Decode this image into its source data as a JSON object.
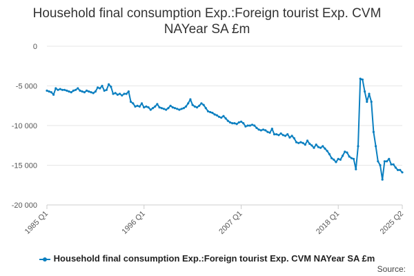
{
  "chart_data": {
    "type": "line",
    "title": "Household final consumption Exp.:Foreign tourist Exp. CVM NAYear SA £m",
    "title_lines": [
      "Household final consumption Exp.:Foreign tourist Exp. CVM",
      "NAYear SA £m"
    ],
    "ylim": [
      -20000,
      0
    ],
    "yticks": [
      0,
      -5000,
      -10000,
      -15000,
      -20000
    ],
    "ytick_labels": [
      "0",
      "-5 000",
      "-10 000",
      "-15 000",
      "-20 000"
    ],
    "xlim": [
      1985.0,
      2025.25
    ],
    "xticks": [
      1985.0,
      1996.0,
      2007.0,
      2018.0,
      2025.25
    ],
    "xtick_labels": [
      "1985 Q1",
      "1996 Q1",
      "2007 Q1",
      "2018 Q1",
      "2025 Q2"
    ],
    "grid": true,
    "legend_position": "bottom",
    "series": [
      {
        "name": "Household final consumption Exp.:Foreign tourist Exp. CVM NAYear SA £m",
        "color": "#0a7fc0",
        "points": [
          [
            1985.0,
            -5600
          ],
          [
            1985.25,
            -5700
          ],
          [
            1985.5,
            -5800
          ],
          [
            1985.75,
            -6100
          ],
          [
            1986.0,
            -5300
          ],
          [
            1986.25,
            -5500
          ],
          [
            1986.5,
            -5400
          ],
          [
            1986.75,
            -5500
          ],
          [
            1987.0,
            -5500
          ],
          [
            1987.25,
            -5600
          ],
          [
            1987.5,
            -5700
          ],
          [
            1987.75,
            -5800
          ],
          [
            1988.0,
            -5600
          ],
          [
            1988.25,
            -5500
          ],
          [
            1988.5,
            -5300
          ],
          [
            1988.75,
            -5600
          ],
          [
            1989.0,
            -5700
          ],
          [
            1989.25,
            -5800
          ],
          [
            1989.5,
            -5600
          ],
          [
            1989.75,
            -5700
          ],
          [
            1990.0,
            -5800
          ],
          [
            1990.25,
            -5900
          ],
          [
            1990.5,
            -5700
          ],
          [
            1990.75,
            -5200
          ],
          [
            1991.0,
            -5300
          ],
          [
            1991.25,
            -5000
          ],
          [
            1991.5,
            -5600
          ],
          [
            1991.75,
            -5500
          ],
          [
            1992.0,
            -4800
          ],
          [
            1992.25,
            -5100
          ],
          [
            1992.5,
            -6000
          ],
          [
            1992.75,
            -5900
          ],
          [
            1993.0,
            -6100
          ],
          [
            1993.25,
            -6000
          ],
          [
            1993.5,
            -6200
          ],
          [
            1993.75,
            -6000
          ],
          [
            1994.0,
            -6000
          ],
          [
            1994.25,
            -5700
          ],
          [
            1994.5,
            -7000
          ],
          [
            1994.75,
            -7200
          ],
          [
            1995.0,
            -7600
          ],
          [
            1995.25,
            -7500
          ],
          [
            1995.5,
            -7600
          ],
          [
            1995.75,
            -7200
          ],
          [
            1996.0,
            -7700
          ],
          [
            1996.25,
            -7600
          ],
          [
            1996.5,
            -7700
          ],
          [
            1996.75,
            -8000
          ],
          [
            1997.0,
            -7800
          ],
          [
            1997.25,
            -7600
          ],
          [
            1997.5,
            -7300
          ],
          [
            1997.75,
            -7700
          ],
          [
            1998.0,
            -7800
          ],
          [
            1998.25,
            -7900
          ],
          [
            1998.5,
            -8000
          ],
          [
            1998.75,
            -7800
          ],
          [
            1999.0,
            -7500
          ],
          [
            1999.25,
            -7700
          ],
          [
            1999.5,
            -7800
          ],
          [
            1999.75,
            -7900
          ],
          [
            2000.0,
            -8000
          ],
          [
            2000.25,
            -7900
          ],
          [
            2000.5,
            -7800
          ],
          [
            2000.75,
            -7600
          ],
          [
            2001.0,
            -7200
          ],
          [
            2001.25,
            -6700
          ],
          [
            2001.5,
            -7400
          ],
          [
            2001.75,
            -7600
          ],
          [
            2002.0,
            -7700
          ],
          [
            2002.25,
            -7500
          ],
          [
            2002.5,
            -7200
          ],
          [
            2002.75,
            -7400
          ],
          [
            2003.0,
            -7800
          ],
          [
            2003.25,
            -8200
          ],
          [
            2003.5,
            -8300
          ],
          [
            2003.75,
            -8400
          ],
          [
            2004.0,
            -8600
          ],
          [
            2004.25,
            -8700
          ],
          [
            2004.5,
            -8900
          ],
          [
            2004.75,
            -9000
          ],
          [
            2005.0,
            -8800
          ],
          [
            2005.25,
            -9100
          ],
          [
            2005.5,
            -9400
          ],
          [
            2005.75,
            -9600
          ],
          [
            2006.0,
            -9700
          ],
          [
            2006.25,
            -9700
          ],
          [
            2006.5,
            -9800
          ],
          [
            2006.75,
            -9600
          ],
          [
            2007.0,
            -9500
          ],
          [
            2007.25,
            -9700
          ],
          [
            2007.5,
            -10100
          ],
          [
            2007.75,
            -10000
          ],
          [
            2008.0,
            -10000
          ],
          [
            2008.25,
            -9900
          ],
          [
            2008.5,
            -10000
          ],
          [
            2008.75,
            -10300
          ],
          [
            2009.0,
            -10500
          ],
          [
            2009.25,
            -10600
          ],
          [
            2009.5,
            -10500
          ],
          [
            2009.75,
            -10600
          ],
          [
            2010.0,
            -10800
          ],
          [
            2010.25,
            -10900
          ],
          [
            2010.5,
            -10400
          ],
          [
            2010.75,
            -11100
          ],
          [
            2011.0,
            -11100
          ],
          [
            2011.25,
            -11200
          ],
          [
            2011.5,
            -11000
          ],
          [
            2011.75,
            -11200
          ],
          [
            2012.0,
            -11300
          ],
          [
            2012.25,
            -11100
          ],
          [
            2012.5,
            -11500
          ],
          [
            2012.75,
            -11300
          ],
          [
            2013.0,
            -11600
          ],
          [
            2013.25,
            -12100
          ],
          [
            2013.5,
            -12200
          ],
          [
            2013.75,
            -12100
          ],
          [
            2014.0,
            -12200
          ],
          [
            2014.25,
            -12400
          ],
          [
            2014.5,
            -11900
          ],
          [
            2014.75,
            -12300
          ],
          [
            2015.0,
            -12500
          ],
          [
            2015.25,
            -12800
          ],
          [
            2015.5,
            -12400
          ],
          [
            2015.75,
            -12700
          ],
          [
            2016.0,
            -12800
          ],
          [
            2016.25,
            -12600
          ],
          [
            2016.5,
            -12900
          ],
          [
            2016.75,
            -13200
          ],
          [
            2017.0,
            -13600
          ],
          [
            2017.25,
            -14100
          ],
          [
            2017.5,
            -14300
          ],
          [
            2017.75,
            -14600
          ],
          [
            2018.0,
            -14200
          ],
          [
            2018.25,
            -14300
          ],
          [
            2018.5,
            -13800
          ],
          [
            2018.75,
            -13300
          ],
          [
            2019.0,
            -13400
          ],
          [
            2019.25,
            -13900
          ],
          [
            2019.5,
            -14100
          ],
          [
            2019.75,
            -14200
          ],
          [
            2020.0,
            -15500
          ],
          [
            2020.25,
            -12600
          ],
          [
            2020.5,
            -4100
          ],
          [
            2020.75,
            -4200
          ],
          [
            2021.0,
            -5700
          ],
          [
            2021.25,
            -7000
          ],
          [
            2021.5,
            -6000
          ],
          [
            2021.75,
            -7000
          ],
          [
            2022.0,
            -10800
          ],
          [
            2022.25,
            -12600
          ],
          [
            2022.5,
            -14500
          ],
          [
            2022.75,
            -15000
          ],
          [
            2023.0,
            -16800
          ],
          [
            2023.25,
            -14500
          ],
          [
            2023.5,
            -14500
          ],
          [
            2023.75,
            -14200
          ],
          [
            2024.0,
            -14900
          ],
          [
            2024.25,
            -14900
          ],
          [
            2024.5,
            -15300
          ],
          [
            2024.75,
            -15600
          ],
          [
            2025.0,
            -15600
          ],
          [
            2025.25,
            -15900
          ]
        ]
      }
    ]
  },
  "legend": {
    "label": "Household final consumption Exp.:Foreign tourist Exp. CVM NAYear SA £m"
  },
  "footer": {
    "source": "Source:"
  }
}
